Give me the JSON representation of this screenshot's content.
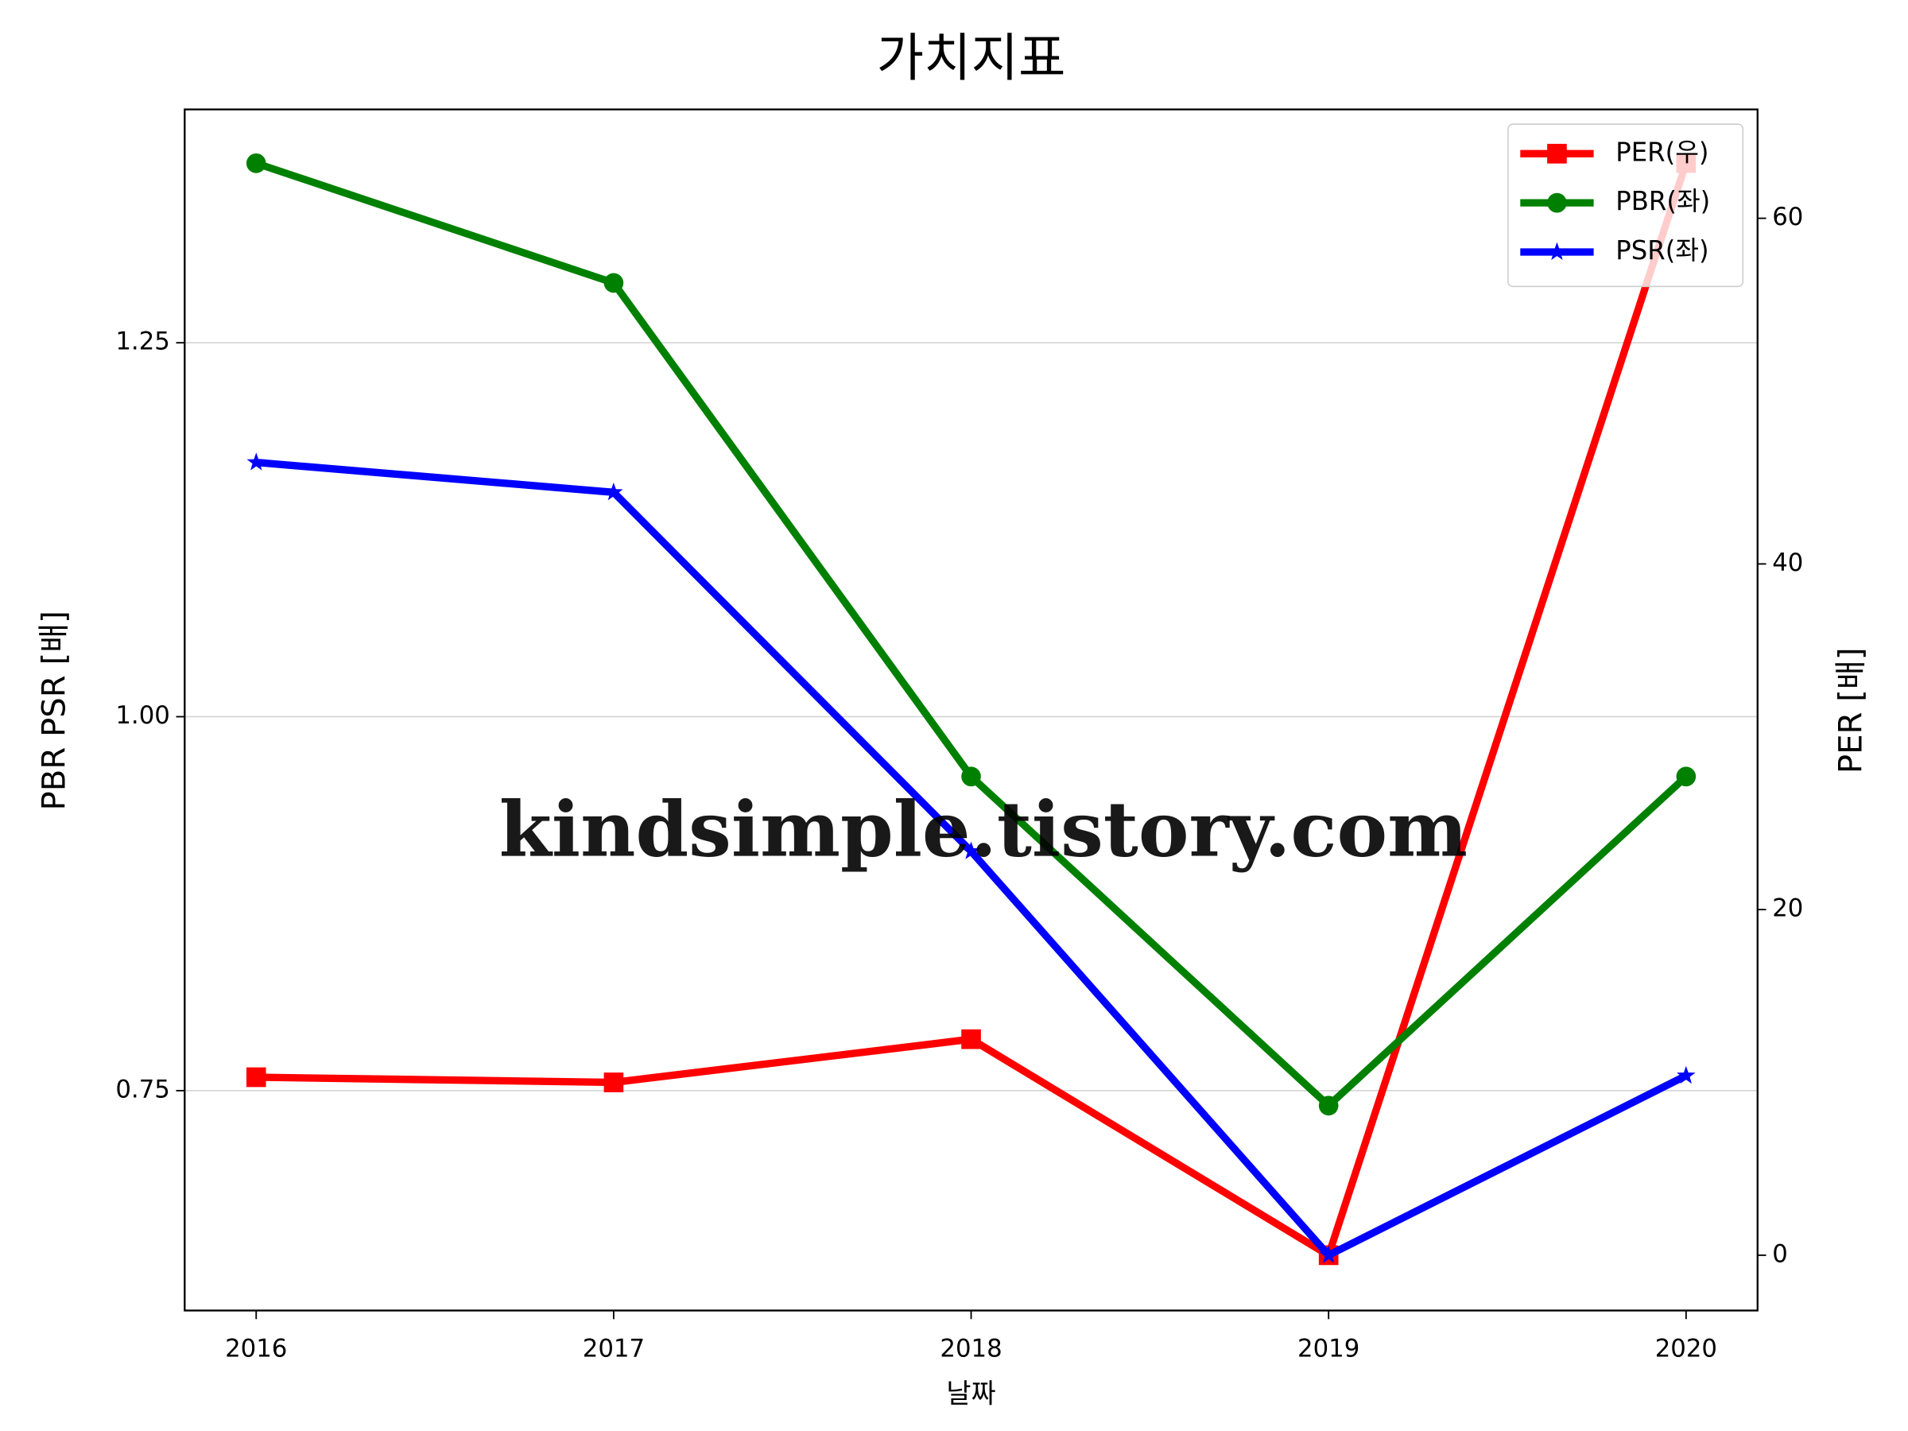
{
  "chart_data": {
    "type": "line",
    "title": "가치지표",
    "xlabel": "날짜",
    "ylabel": "PBR PSR [배]",
    "ylabel_color": "#008000",
    "y2label": "PER [배]",
    "y2label_color": "#ff0000",
    "watermark": "kindsimple.tistory.com",
    "x": [
      2016,
      2017,
      2018,
      2019,
      2020
    ],
    "xlim": [
      2015.8,
      2020.2
    ],
    "xticks": [
      2016,
      2017,
      2018,
      2019,
      2020
    ],
    "ylim": [
      0.603,
      1.406
    ],
    "yticks": [
      0.75,
      {
        "value": 1,
        "label": "1.00"
      },
      1.25
    ],
    "y2lim": [
      -3.2,
      66.3
    ],
    "y2ticks": [
      0,
      20,
      40,
      60
    ],
    "grid": true,
    "legend": "upper right",
    "series": [
      {
        "name": "PER(우)",
        "color": "#ff0000",
        "marker": "square",
        "axis": "y2",
        "values": [
          10.3,
          10.0,
          12.5,
          0,
          63.2
        ]
      },
      {
        "name": "PBR(좌)",
        "color": "#008000",
        "marker": "circle",
        "values": [
          1.37,
          1.29,
          0.96,
          0.74,
          0.96
        ]
      },
      {
        "name": "PSR(좌)",
        "color": "#0000ff",
        "marker": "star",
        "values": [
          1.17,
          1.15,
          0.91,
          0.64,
          0.76
        ]
      }
    ]
  }
}
